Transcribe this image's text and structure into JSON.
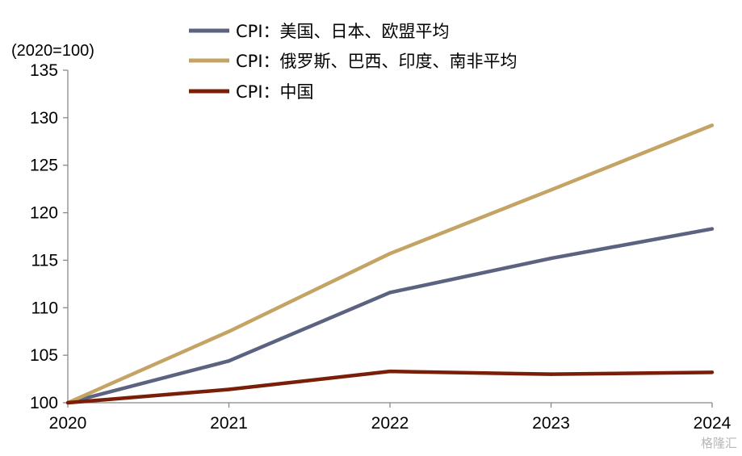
{
  "chart_data": {
    "type": "line",
    "unit_label": "(2020=100)",
    "x": [
      "2020",
      "2021",
      "2022",
      "2023",
      "2024"
    ],
    "ylim": [
      100,
      135
    ],
    "yticks": [
      100,
      105,
      110,
      115,
      120,
      125,
      130,
      135
    ],
    "grid": false,
    "legend_position": "top",
    "series": [
      {
        "name": "CPI：美国、日本、欧盟平均",
        "color": "#5b6380",
        "values": [
          100,
          104.4,
          111.6,
          115.2,
          118.3
        ]
      },
      {
        "name": "CPI：俄罗斯、巴西、印度、南非平均",
        "color": "#c4a464",
        "values": [
          100,
          107.5,
          115.7,
          122.4,
          129.2
        ]
      },
      {
        "name": "CPI：中国",
        "color": "#7a1e08",
        "values": [
          100,
          101.4,
          103.3,
          103.0,
          103.2
        ]
      }
    ]
  },
  "watermark": "格隆汇"
}
